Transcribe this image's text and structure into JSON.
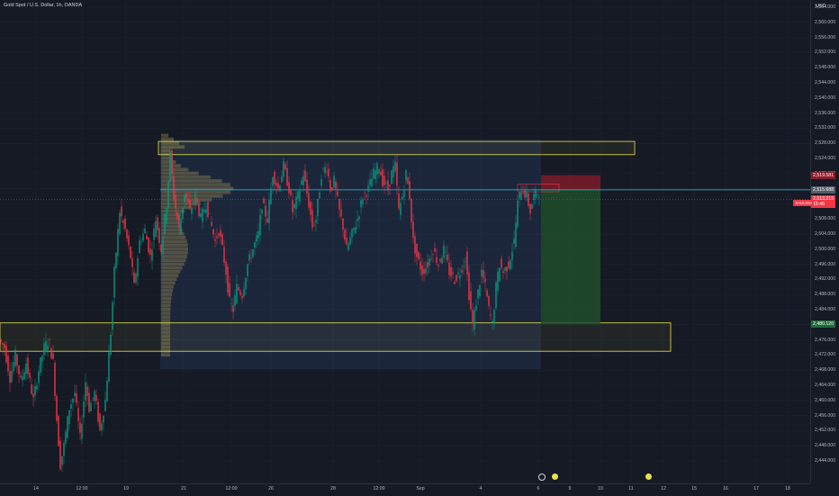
{
  "header": {
    "symbol_title": "Gold Spot / U.S. Dollar, 1h, OANDA"
  },
  "price_scale": {
    "currency": "USD",
    "ticks": [
      "2,564.000",
      "2,560.000",
      "2,556.000",
      "2,552.000",
      "2,548.000",
      "2,544.000",
      "2,540.000",
      "2,536.000",
      "2,532.000",
      "2,528.000",
      "2,524.000",
      "2,520.000",
      "2,516.000",
      "2,512.000",
      "2,508.000",
      "2,504.000",
      "2,500.000",
      "2,496.000",
      "2,492.000",
      "2,488.000",
      "2,484.000",
      "2,480.000",
      "2,476.000",
      "2,472.000",
      "2,468.000",
      "2,464.000",
      "2,460.000",
      "2,456.000",
      "2,452.000",
      "2,448.000",
      "2,444.000"
    ]
  },
  "time_axis": {
    "ticks": [
      "14",
      "12:00",
      "19",
      "21",
      "12:00",
      "26",
      "28",
      "12:00",
      "Sep",
      "4",
      "6",
      "9",
      "10",
      "11",
      "12",
      "15",
      "16",
      "17",
      "18"
    ]
  },
  "price_labels": {
    "stop_loss": "2,519.581",
    "entry": "2,515.688",
    "current": "2,513.215",
    "countdown": "15:46",
    "target": "2,480.120",
    "left_tag": "XAUUSD"
  },
  "colors": {
    "background": "#161a25",
    "up_candle": "#089981",
    "down_candle": "#f23645",
    "zone_outline": "#e8e34a",
    "hline": "#26c6da",
    "volume_profile": "#b8a35a",
    "stop_zone": "#8b1c2b",
    "target_zone": "#1e4d2b"
  },
  "icons": {
    "axis_icon_1": "calendar-event-icon",
    "axis_icon_2": "flag-icon",
    "axis_icon_3": "flag-icon"
  },
  "chart_data": {
    "type": "candlestick",
    "title": "Gold Spot / U.S. Dollar, 1h, OANDA",
    "ylim": [
      2440,
      2567
    ],
    "zones": [
      {
        "name": "resistance",
        "range": [
          2525,
          2528.5
        ]
      },
      {
        "name": "support",
        "range": [
          2473,
          2480.5
        ]
      }
    ],
    "hline": 2515.7,
    "position": {
      "entry": 2515.688,
      "stop_loss": 2519.581,
      "target": 2480.12
    },
    "price_path": [
      [
        0,
        2476
      ],
      [
        6,
        2474
      ],
      [
        12,
        2466
      ],
      [
        18,
        2472
      ],
      [
        24,
        2465
      ],
      [
        30,
        2470
      ],
      [
        38,
        2460
      ],
      [
        44,
        2468
      ],
      [
        50,
        2474
      ],
      [
        55,
        2476
      ],
      [
        60,
        2470
      ],
      [
        64,
        2455
      ],
      [
        68,
        2443
      ],
      [
        72,
        2448
      ],
      [
        78,
        2458
      ],
      [
        84,
        2462
      ],
      [
        90,
        2450
      ],
      [
        96,
        2465
      ],
      [
        100,
        2458
      ],
      [
        106,
        2462
      ],
      [
        112,
        2452
      ],
      [
        118,
        2460
      ],
      [
        124,
        2478
      ],
      [
        128,
        2494
      ],
      [
        134,
        2510
      ],
      [
        140,
        2505
      ],
      [
        146,
        2498
      ],
      [
        150,
        2490
      ],
      [
        156,
        2502
      ],
      [
        162,
        2505
      ],
      [
        168,
        2498
      ],
      [
        174,
        2508
      ],
      [
        180,
        2500
      ],
      [
        186,
        2512
      ],
      [
        190,
        2525
      ],
      [
        194,
        2514
      ],
      [
        200,
        2505
      ],
      [
        206,
        2515
      ],
      [
        212,
        2510
      ],
      [
        218,
        2514
      ],
      [
        224,
        2508
      ],
      [
        230,
        2512
      ],
      [
        236,
        2506
      ],
      [
        240,
        2502
      ],
      [
        244,
        2505
      ],
      [
        248,
        2500
      ],
      [
        252,
        2494
      ],
      [
        256,
        2486
      ],
      [
        260,
        2484
      ],
      [
        264,
        2490
      ],
      [
        270,
        2488
      ],
      [
        276,
        2496
      ],
      [
        282,
        2500
      ],
      [
        288,
        2504
      ],
      [
        292,
        2512
      ],
      [
        298,
        2508
      ],
      [
        304,
        2520
      ],
      [
        310,
        2516
      ],
      [
        316,
        2522
      ],
      [
        322,
        2516
      ],
      [
        326,
        2510
      ],
      [
        332,
        2514
      ],
      [
        338,
        2520
      ],
      [
        344,
        2512
      ],
      [
        348,
        2506
      ],
      [
        352,
        2508
      ],
      [
        358,
        2520
      ],
      [
        364,
        2522
      ],
      [
        368,
        2516
      ],
      [
        372,
        2518
      ],
      [
        378,
        2510
      ],
      [
        382,
        2506
      ],
      [
        386,
        2500
      ],
      [
        392,
        2504
      ],
      [
        398,
        2508
      ],
      [
        404,
        2514
      ],
      [
        410,
        2516
      ],
      [
        416,
        2520
      ],
      [
        422,
        2522
      ],
      [
        426,
        2518
      ],
      [
        432,
        2516
      ],
      [
        436,
        2520
      ],
      [
        440,
        2522
      ],
      [
        444,
        2510
      ],
      [
        448,
        2514
      ],
      [
        452,
        2520
      ],
      [
        456,
        2514
      ],
      [
        460,
        2502
      ],
      [
        464,
        2498
      ],
      [
        470,
        2494
      ],
      [
        476,
        2496
      ],
      [
        482,
        2500
      ],
      [
        488,
        2496
      ],
      [
        494,
        2500
      ],
      [
        500,
        2494
      ],
      [
        506,
        2492
      ],
      [
        512,
        2494
      ],
      [
        518,
        2498
      ],
      [
        522,
        2488
      ],
      [
        526,
        2480
      ],
      [
        530,
        2486
      ],
      [
        536,
        2494
      ],
      [
        540,
        2490
      ],
      [
        544,
        2484
      ],
      [
        548,
        2480
      ],
      [
        552,
        2490
      ],
      [
        556,
        2496
      ],
      [
        560,
        2494
      ],
      [
        566,
        2496
      ],
      [
        572,
        2502
      ],
      [
        576,
        2512
      ],
      [
        580,
        2516
      ],
      [
        586,
        2514
      ],
      [
        590,
        2510
      ],
      [
        594,
        2514
      ],
      [
        598,
        2515
      ]
    ]
  }
}
